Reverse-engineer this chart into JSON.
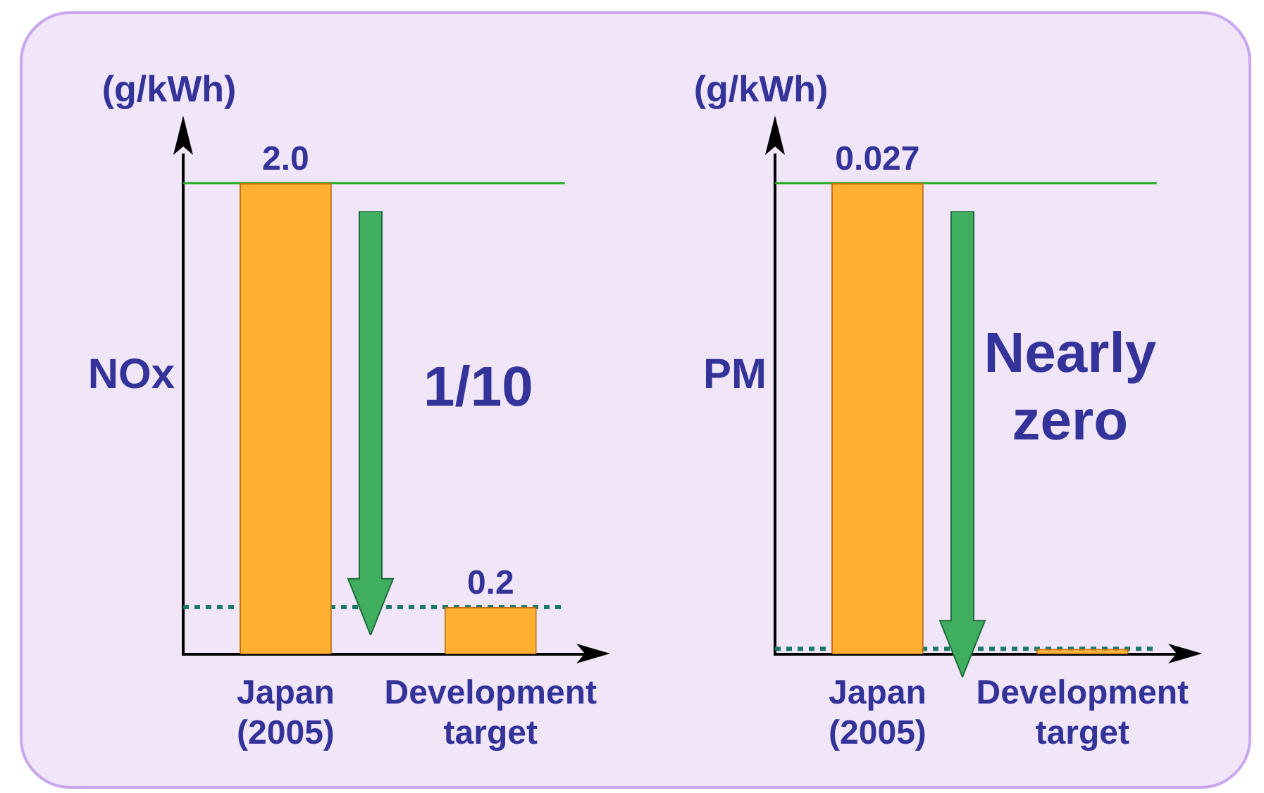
{
  "chart_data": [
    {
      "type": "bar",
      "categories": [
        "Japan (2005)",
        "Development target"
      ],
      "values": [
        2.0,
        0.2
      ],
      "value_labels": [
        "2.0",
        "0.2"
      ],
      "colors": [
        "#ffb030",
        "#ffb030"
      ],
      "ylabel": "NOx",
      "tick_labels": "x",
      "annotations": [
        "(g/kWh)",
        "1/10"
      ],
      "ref_lines": [
        {
          "axis": "y",
          "value": 2.0,
          "color": "#22aa22",
          "line_style": "solid"
        },
        {
          "axis": "y",
          "value": 0.2,
          "color": "#1a7a6a",
          "line_style": "dotted"
        }
      ]
    },
    {
      "type": "bar",
      "categories": [
        "Japan (2005)",
        "Development target"
      ],
      "values": [
        0.027,
        0.0003
      ],
      "value_labels": [
        "0.027",
        null
      ],
      "colors": [
        "#ffb030",
        "#ffb030"
      ],
      "ylabel": "PM",
      "tick_labels": "x",
      "annotations": [
        "(g/kWh)",
        "Nearly zero"
      ],
      "ref_lines": [
        {
          "axis": "y",
          "value": 0.027,
          "color": "#22aa22",
          "line_style": "solid"
        },
        {
          "axis": "y",
          "value": 0.0003,
          "color": "#1a7a6a",
          "line_style": "dotted"
        }
      ]
    }
  ]
}
